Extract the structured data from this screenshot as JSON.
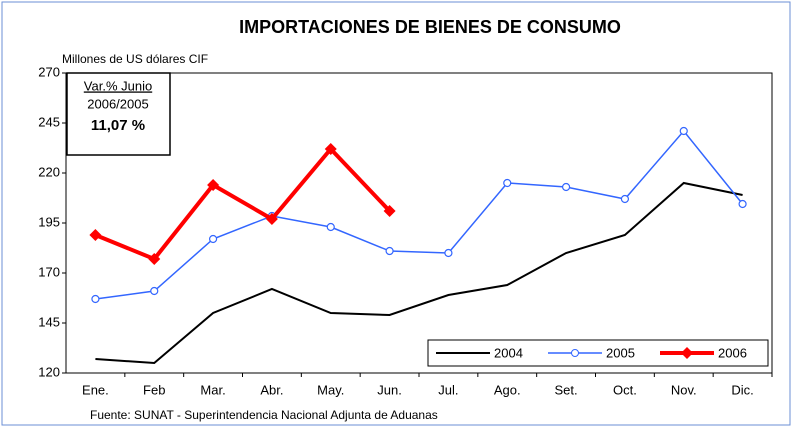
{
  "chart_data": {
    "type": "line",
    "title": "IMPORTACIONES DE BIENES DE CONSUMO",
    "y_label": "Millones de US dólares CIF",
    "source": "Fuente: SUNAT - Superintendencia Nacional Adjunta de Aduanas",
    "annotation": [
      "Var.% Junio",
      "2006/2005",
      "11,07 %"
    ],
    "categories": [
      "Ene.",
      "Feb",
      "Mar.",
      "Abr.",
      "May.",
      "Jun.",
      "Jul.",
      "Ago.",
      "Set.",
      "Oct.",
      "Nov.",
      "Dic."
    ],
    "series": [
      {
        "name": "2004",
        "color": "#000000",
        "marker": "none",
        "values": [
          127,
          125,
          150,
          162,
          150,
          149,
          159,
          164,
          180,
          189,
          215,
          209
        ]
      },
      {
        "name": "2005",
        "color": "#3366ff",
        "marker": "circle",
        "values": [
          157,
          161,
          187,
          198.5,
          193,
          181,
          180,
          215,
          213,
          207,
          241,
          204.5
        ]
      },
      {
        "name": "2006",
        "color": "#ff0000",
        "marker": "diamond",
        "values": [
          189,
          177,
          214,
          197,
          232,
          201,
          null,
          null,
          null,
          null,
          null,
          null
        ]
      }
    ],
    "ylim": [
      120,
      270
    ],
    "yticks": [
      120,
      145,
      170,
      195,
      220,
      245,
      270
    ],
    "legend": "lower right"
  }
}
